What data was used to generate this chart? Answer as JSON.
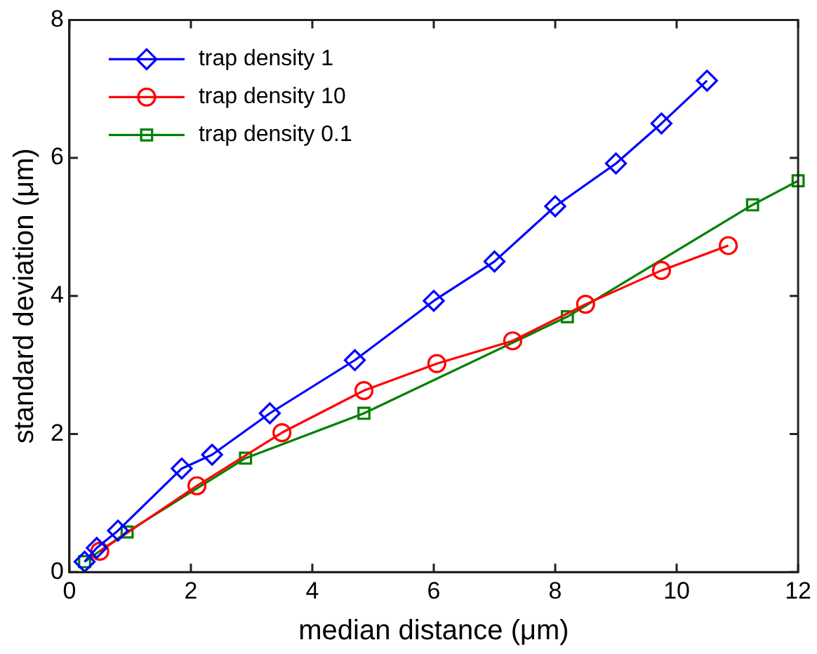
{
  "chart_data": {
    "type": "line",
    "xlabel": "median distance (μm)",
    "ylabel": "standard deviation (μm)",
    "xlim": [
      0,
      12
    ],
    "xticks": [
      0,
      2,
      4,
      6,
      8,
      10,
      12
    ],
    "ylim": [
      0,
      8
    ],
    "yticks": [
      0,
      2,
      4,
      6,
      8
    ],
    "grid": false,
    "legend": "top left",
    "line_style": "solid",
    "series": [
      {
        "name": "trap density 1",
        "color": "#0000ff",
        "marker": "diamond",
        "x": [
          0.25,
          0.45,
          0.8,
          1.85,
          2.35,
          3.3,
          4.7,
          6.0,
          7.0,
          8.0,
          9.0,
          9.75,
          10.5
        ],
        "values": [
          0.15,
          0.35,
          0.6,
          1.5,
          1.7,
          2.3,
          3.07,
          3.93,
          4.5,
          5.3,
          5.92,
          6.5,
          7.12
        ]
      },
      {
        "name": "trap density 10",
        "color": "#ff0000",
        "marker": "circle",
        "x": [
          0.5,
          2.1,
          3.5,
          4.85,
          6.05,
          7.3,
          8.5,
          9.75,
          10.85
        ],
        "values": [
          0.3,
          1.25,
          2.02,
          2.63,
          3.02,
          3.35,
          3.88,
          4.37,
          4.73
        ]
      },
      {
        "name": "trap density 0.1",
        "color": "#008000",
        "marker": "square",
        "x": [
          0.25,
          0.95,
          2.9,
          4.85,
          8.2,
          11.25,
          12
        ],
        "values": [
          0.15,
          0.58,
          1.65,
          2.3,
          3.7,
          5.32,
          5.67
        ]
      }
    ]
  }
}
